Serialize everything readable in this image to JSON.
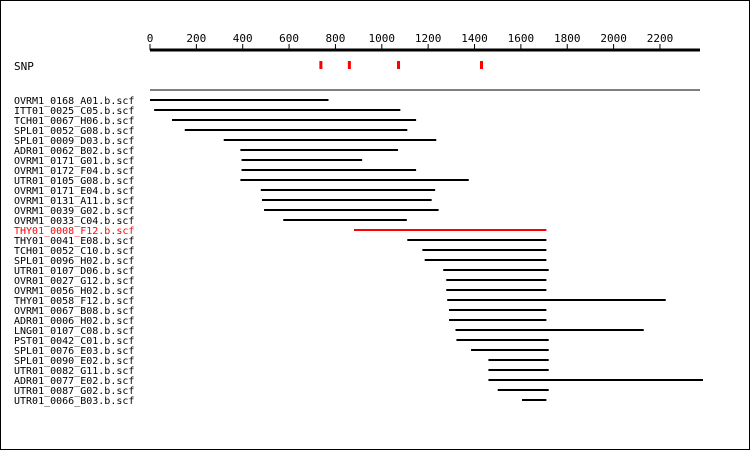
{
  "axis": {
    "ticks": [
      0,
      200,
      400,
      600,
      800,
      1000,
      1200,
      1400,
      1600,
      1800,
      2000,
      2200
    ],
    "range": [
      0,
      2400
    ]
  },
  "snp": {
    "label": "SNP",
    "positions": [
      735,
      858,
      1070,
      1428
    ],
    "color": "#ff0000"
  },
  "consensus": {
    "start": 0,
    "end": 2380
  },
  "colors": {
    "normal": "#000000",
    "highlight": "#ff0000"
  },
  "reads": [
    {
      "name": "OVRM1_0168_A01.b.scf",
      "start": 0,
      "end": 770,
      "highlight": false
    },
    {
      "name": "ITT01_0025_C05.b.scf",
      "start": 18,
      "end": 1080,
      "highlight": false
    },
    {
      "name": "TCH01_0067_H06.b.scf",
      "start": 95,
      "end": 1148,
      "highlight": false
    },
    {
      "name": "SPL01_0052_G08.b.scf",
      "start": 150,
      "end": 1110,
      "highlight": false
    },
    {
      "name": "SPL01_0009_D03.b.scf",
      "start": 318,
      "end": 1235,
      "highlight": false
    },
    {
      "name": "ADR01_0062_B02.b.scf",
      "start": 390,
      "end": 1070,
      "highlight": false
    },
    {
      "name": "OVRM1_0171_G01.b.scf",
      "start": 395,
      "end": 915,
      "highlight": false
    },
    {
      "name": "OVRM1_0172_F04.b.scf",
      "start": 395,
      "end": 1148,
      "highlight": false
    },
    {
      "name": "UTR01_0105_G08.b.scf",
      "start": 390,
      "end": 1375,
      "highlight": false
    },
    {
      "name": "OVRM1_0171_E04.b.scf",
      "start": 478,
      "end": 1230,
      "highlight": false
    },
    {
      "name": "OVRM1_0131_A11.b.scf",
      "start": 483,
      "end": 1215,
      "highlight": false
    },
    {
      "name": "OVRM1_0039_G02.b.scf",
      "start": 492,
      "end": 1245,
      "highlight": false
    },
    {
      "name": "OVRM1_0033_C04.b.scf",
      "start": 575,
      "end": 1108,
      "highlight": false
    },
    {
      "name": "THY01_0008_F12.b.scf",
      "start": 880,
      "end": 1710,
      "highlight": true
    },
    {
      "name": "THY01_0041_E08.b.scf",
      "start": 1110,
      "end": 1710,
      "highlight": false
    },
    {
      "name": "TCH01_0052_C10.b.scf",
      "start": 1175,
      "end": 1710,
      "highlight": false
    },
    {
      "name": "SPL01_0096_H02.b.scf",
      "start": 1185,
      "end": 1710,
      "highlight": false
    },
    {
      "name": "UTR01_0107_D06.b.scf",
      "start": 1265,
      "end": 1720,
      "highlight": false
    },
    {
      "name": "OVR01_0027_G12.b.scf",
      "start": 1278,
      "end": 1710,
      "highlight": false
    },
    {
      "name": "OVRM1_0056_H02.b.scf",
      "start": 1278,
      "end": 1710,
      "highlight": false
    },
    {
      "name": "THY01_0058_F12.b.scf",
      "start": 1282,
      "end": 2225,
      "highlight": false
    },
    {
      "name": "OVRM1_0067_B08.b.scf",
      "start": 1290,
      "end": 1710,
      "highlight": false
    },
    {
      "name": "ADR01_0006_H02.b.scf",
      "start": 1290,
      "end": 1710,
      "highlight": false
    },
    {
      "name": "LNG01_0107_C08.b.scf",
      "start": 1318,
      "end": 2130,
      "highlight": false
    },
    {
      "name": "PST01_0042_C01.b.scf",
      "start": 1322,
      "end": 1720,
      "highlight": false
    },
    {
      "name": "SPL01_0076_E03.b.scf",
      "start": 1385,
      "end": 1720,
      "highlight": false
    },
    {
      "name": "SPL01_0090_E02.b.scf",
      "start": 1460,
      "end": 1720,
      "highlight": false
    },
    {
      "name": "UTR01_0082_G11.b.scf",
      "start": 1460,
      "end": 1720,
      "highlight": false
    },
    {
      "name": "ADR01_0077_E02.b.scf",
      "start": 1460,
      "end": 2395,
      "highlight": false
    },
    {
      "name": "UTR01_0087_G02.b.scf",
      "start": 1500,
      "end": 1720,
      "highlight": false
    },
    {
      "name": "UTR01_0066_B03.b.scf",
      "start": 1605,
      "end": 1710,
      "highlight": false
    }
  ]
}
